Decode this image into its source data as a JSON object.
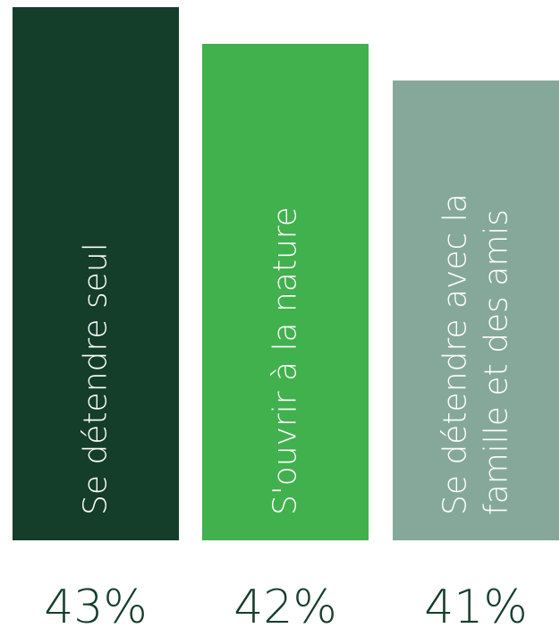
{
  "chart_data": {
    "type": "bar",
    "categories": [
      "Se détendre seul",
      "S'ouvrir à la nature",
      "Se détendre avec la famille et des amis"
    ],
    "category_lines": [
      [
        "Se détendre seul"
      ],
      [
        "S'ouvrir à la nature"
      ],
      [
        "Se détendre avec la",
        "famille et des amis"
      ]
    ],
    "values": [
      43,
      42,
      41
    ],
    "value_labels": [
      "43%",
      "42%",
      "41%"
    ],
    "unit": "%",
    "colors": [
      "#143d2a",
      "#40b14d",
      "#86a89b"
    ],
    "label_color": "#ffffff",
    "value_label_color": "#143d2a",
    "grid": false,
    "legend": "none"
  }
}
